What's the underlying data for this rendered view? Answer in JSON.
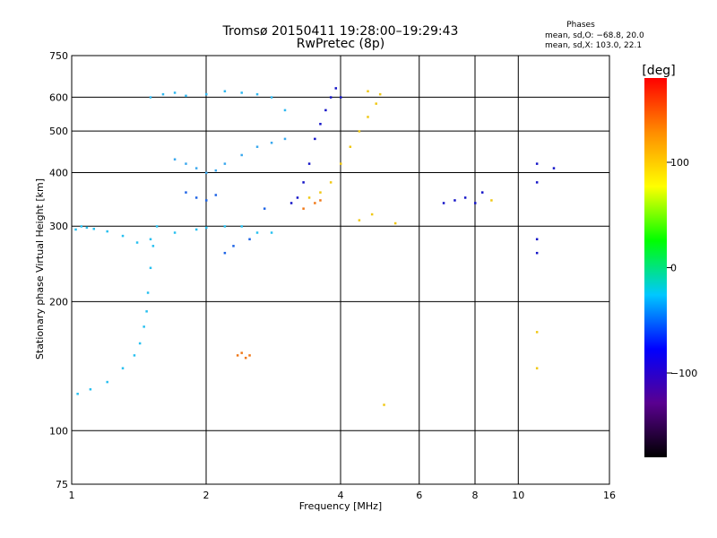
{
  "chart_data": {
    "type": "scatter",
    "title": "Tromsø 20150411 19:28:00–19:29:43",
    "subtitle": "RwPretec (8p)",
    "stats_header": "Phases",
    "stats_line1": "mean, sd,O: −68.8, 20.0",
    "stats_line2": "mean, sd,X: 103.0, 22.1",
    "xlabel": "Frequency [MHz]",
    "ylabel": "Stationary phase Virtual Height [km]",
    "x_scale": "log",
    "y_scale": "log",
    "xlim": [
      1,
      16
    ],
    "ylim": [
      75,
      750
    ],
    "xticks": [
      "1",
      "2",
      "4",
      "6",
      "8",
      "10",
      "16"
    ],
    "yticks": [
      "75",
      "100",
      "200",
      "300",
      "400",
      "500",
      "600",
      "750"
    ],
    "grid": true,
    "colorbar": {
      "title": "[deg]",
      "ticks": [
        "100",
        "0",
        "−100"
      ],
      "range": [
        -180,
        180
      ],
      "colors": [
        "#000000",
        "#5a0090",
        "#0000ff",
        "#00c8ff",
        "#00ff00",
        "#ffff00",
        "#ff8c00",
        "#ff0000"
      ]
    },
    "series": [
      {
        "color": "#28c0f0",
        "points": [
          [
            1.02,
            295
          ],
          [
            1.05,
            300
          ],
          [
            1.08,
            298
          ],
          [
            1.12,
            296
          ],
          [
            1.2,
            292
          ],
          [
            1.3,
            285
          ],
          [
            1.4,
            275
          ],
          [
            1.5,
            280
          ],
          [
            1.7,
            290
          ],
          [
            1.9,
            295
          ],
          [
            2.0,
            298
          ],
          [
            2.2,
            300
          ],
          [
            2.4,
            300
          ],
          [
            2.6,
            290
          ],
          [
            2.8,
            290
          ]
        ]
      },
      {
        "color": "#28c0f0",
        "points": [
          [
            1.03,
            122
          ],
          [
            1.1,
            125
          ],
          [
            1.2,
            130
          ],
          [
            1.3,
            140
          ],
          [
            1.38,
            150
          ],
          [
            1.42,
            160
          ],
          [
            1.45,
            175
          ],
          [
            1.47,
            190
          ],
          [
            1.48,
            210
          ],
          [
            1.5,
            240
          ],
          [
            1.52,
            270
          ],
          [
            1.55,
            300
          ]
        ]
      },
      {
        "color": "#30b8f0",
        "points": [
          [
            1.5,
            600
          ],
          [
            1.6,
            610
          ],
          [
            1.7,
            615
          ],
          [
            1.8,
            605
          ],
          [
            2.0,
            610
          ],
          [
            2.2,
            620
          ],
          [
            2.4,
            615
          ],
          [
            2.6,
            610
          ],
          [
            2.8,
            600
          ],
          [
            3.0,
            560
          ]
        ]
      },
      {
        "color": "#3aa8ee",
        "points": [
          [
            1.7,
            430
          ],
          [
            1.8,
            420
          ],
          [
            1.9,
            410
          ],
          [
            2.0,
            400
          ],
          [
            2.1,
            405
          ],
          [
            2.2,
            420
          ],
          [
            2.4,
            440
          ],
          [
            2.6,
            460
          ],
          [
            2.8,
            470
          ],
          [
            3.0,
            480
          ]
        ]
      },
      {
        "color": "#1e64e6",
        "points": [
          [
            1.8,
            360
          ],
          [
            1.9,
            350
          ],
          [
            2.0,
            345
          ],
          [
            2.1,
            355
          ],
          [
            2.2,
            260
          ],
          [
            2.3,
            270
          ],
          [
            2.5,
            280
          ],
          [
            2.7,
            330
          ]
        ]
      },
      {
        "color": "#1414c8",
        "points": [
          [
            3.1,
            340
          ],
          [
            3.2,
            350
          ],
          [
            3.3,
            380
          ],
          [
            3.4,
            420
          ],
          [
            3.5,
            480
          ],
          [
            3.6,
            520
          ],
          [
            3.7,
            560
          ],
          [
            3.8,
            600
          ],
          [
            3.9,
            630
          ],
          [
            4.0,
            600
          ]
        ]
      },
      {
        "color": "#f0c814",
        "points": [
          [
            3.4,
            350
          ],
          [
            3.6,
            360
          ],
          [
            3.8,
            380
          ],
          [
            4.0,
            420
          ],
          [
            4.2,
            460
          ],
          [
            4.4,
            500
          ],
          [
            4.6,
            540
          ],
          [
            4.8,
            580
          ],
          [
            4.9,
            610
          ],
          [
            4.6,
            620
          ]
        ]
      },
      {
        "color": "#f07818",
        "points": [
          [
            3.3,
            330
          ],
          [
            3.5,
            340
          ],
          [
            3.6,
            345
          ],
          [
            2.35,
            150
          ],
          [
            2.4,
            152
          ],
          [
            2.45,
            148
          ],
          [
            2.5,
            150
          ]
        ]
      },
      {
        "color": "#1414c8",
        "points": [
          [
            6.8,
            340
          ],
          [
            7.2,
            345
          ],
          [
            7.6,
            350
          ],
          [
            8.0,
            340
          ],
          [
            8.3,
            360
          ],
          [
            11.0,
            420
          ],
          [
            11.0,
            380
          ],
          [
            11.0,
            280
          ],
          [
            11.0,
            260
          ],
          [
            12.0,
            410
          ]
        ]
      },
      {
        "color": "#f0c814",
        "points": [
          [
            4.4,
            310
          ],
          [
            4.7,
            320
          ],
          [
            5.3,
            305
          ],
          [
            8.7,
            345
          ],
          [
            11.0,
            170
          ],
          [
            11.0,
            140
          ],
          [
            5.0,
            115
          ]
        ]
      }
    ]
  }
}
